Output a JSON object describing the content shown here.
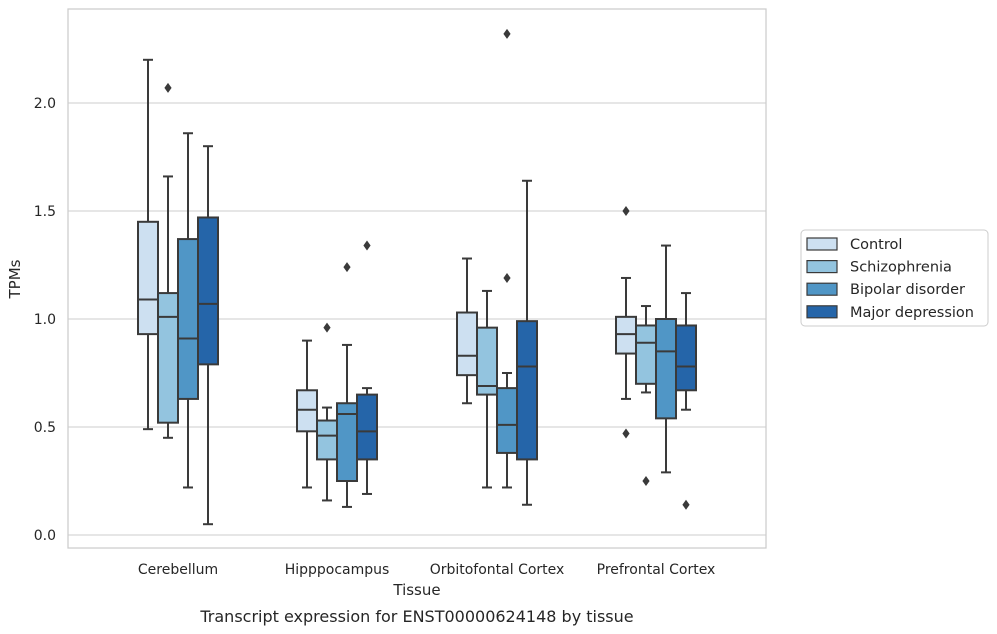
{
  "chart_data": {
    "type": "box",
    "title": "",
    "caption": "Transcript expression for ENST00000624148 by tissue",
    "xlabel": "Tissue",
    "ylabel": "TPMs",
    "ylim": [
      -0.05,
      2.45
    ],
    "yticks": [
      "0.0",
      "0.5",
      "1.0",
      "1.5",
      "2.0"
    ],
    "grid": "horizontal",
    "legend_position": "right",
    "categories": [
      "Cerebellum",
      "Hipppocampus",
      "Orbitofontal Cortex",
      "Prefrontal Cortex"
    ],
    "series": [
      {
        "name": "Control",
        "color": "#cde0f1",
        "boxes": [
          {
            "whislo": 0.49,
            "q1": 0.93,
            "med": 1.09,
            "q3": 1.45,
            "whishi": 2.2,
            "fliers": []
          },
          {
            "whislo": 0.22,
            "q1": 0.48,
            "med": 0.58,
            "q3": 0.67,
            "whishi": 0.9,
            "fliers": []
          },
          {
            "whislo": 0.61,
            "q1": 0.74,
            "med": 0.83,
            "q3": 1.03,
            "whishi": 1.28,
            "fliers": []
          },
          {
            "whislo": 0.63,
            "q1": 0.84,
            "med": 0.93,
            "q3": 1.01,
            "whishi": 1.19,
            "fliers": [
              1.5,
              0.47
            ]
          }
        ]
      },
      {
        "name": "Schizophrenia",
        "color": "#93c4df",
        "boxes": [
          {
            "whislo": 0.45,
            "q1": 0.52,
            "med": 1.01,
            "q3": 1.12,
            "whishi": 1.66,
            "fliers": [
              2.07
            ]
          },
          {
            "whislo": 0.16,
            "q1": 0.35,
            "med": 0.46,
            "q3": 0.53,
            "whishi": 0.59,
            "fliers": [
              0.96
            ]
          },
          {
            "whislo": 0.22,
            "q1": 0.65,
            "med": 0.69,
            "q3": 0.96,
            "whishi": 1.13,
            "fliers": []
          },
          {
            "whislo": 0.66,
            "q1": 0.7,
            "med": 0.89,
            "q3": 0.97,
            "whishi": 1.06,
            "fliers": [
              0.25
            ]
          }
        ]
      },
      {
        "name": "Bipolar disorder",
        "color": "#5096c6",
        "boxes": [
          {
            "whislo": 0.22,
            "q1": 0.63,
            "med": 0.91,
            "q3": 1.37,
            "whishi": 1.86,
            "fliers": []
          },
          {
            "whislo": 0.13,
            "q1": 0.25,
            "med": 0.56,
            "q3": 0.61,
            "whishi": 0.88,
            "fliers": [
              1.24
            ]
          },
          {
            "whislo": 0.22,
            "q1": 0.38,
            "med": 0.51,
            "q3": 0.68,
            "whishi": 0.75,
            "fliers": [
              1.19,
              2.32
            ]
          },
          {
            "whislo": 0.29,
            "q1": 0.54,
            "med": 0.85,
            "q3": 1.0,
            "whishi": 1.34,
            "fliers": []
          }
        ]
      },
      {
        "name": "Major depression",
        "color": "#2565a9",
        "boxes": [
          {
            "whislo": 0.05,
            "q1": 0.79,
            "med": 1.07,
            "q3": 1.47,
            "whishi": 1.8,
            "fliers": []
          },
          {
            "whislo": 0.19,
            "q1": 0.35,
            "med": 0.48,
            "q3": 0.65,
            "whishi": 0.68,
            "fliers": [
              1.34
            ]
          },
          {
            "whislo": 0.14,
            "q1": 0.35,
            "med": 0.78,
            "q3": 0.99,
            "whishi": 1.64,
            "fliers": []
          },
          {
            "whislo": 0.58,
            "q1": 0.67,
            "med": 0.78,
            "q3": 0.97,
            "whishi": 1.12,
            "fliers": [
              0.14
            ]
          }
        ]
      }
    ]
  }
}
